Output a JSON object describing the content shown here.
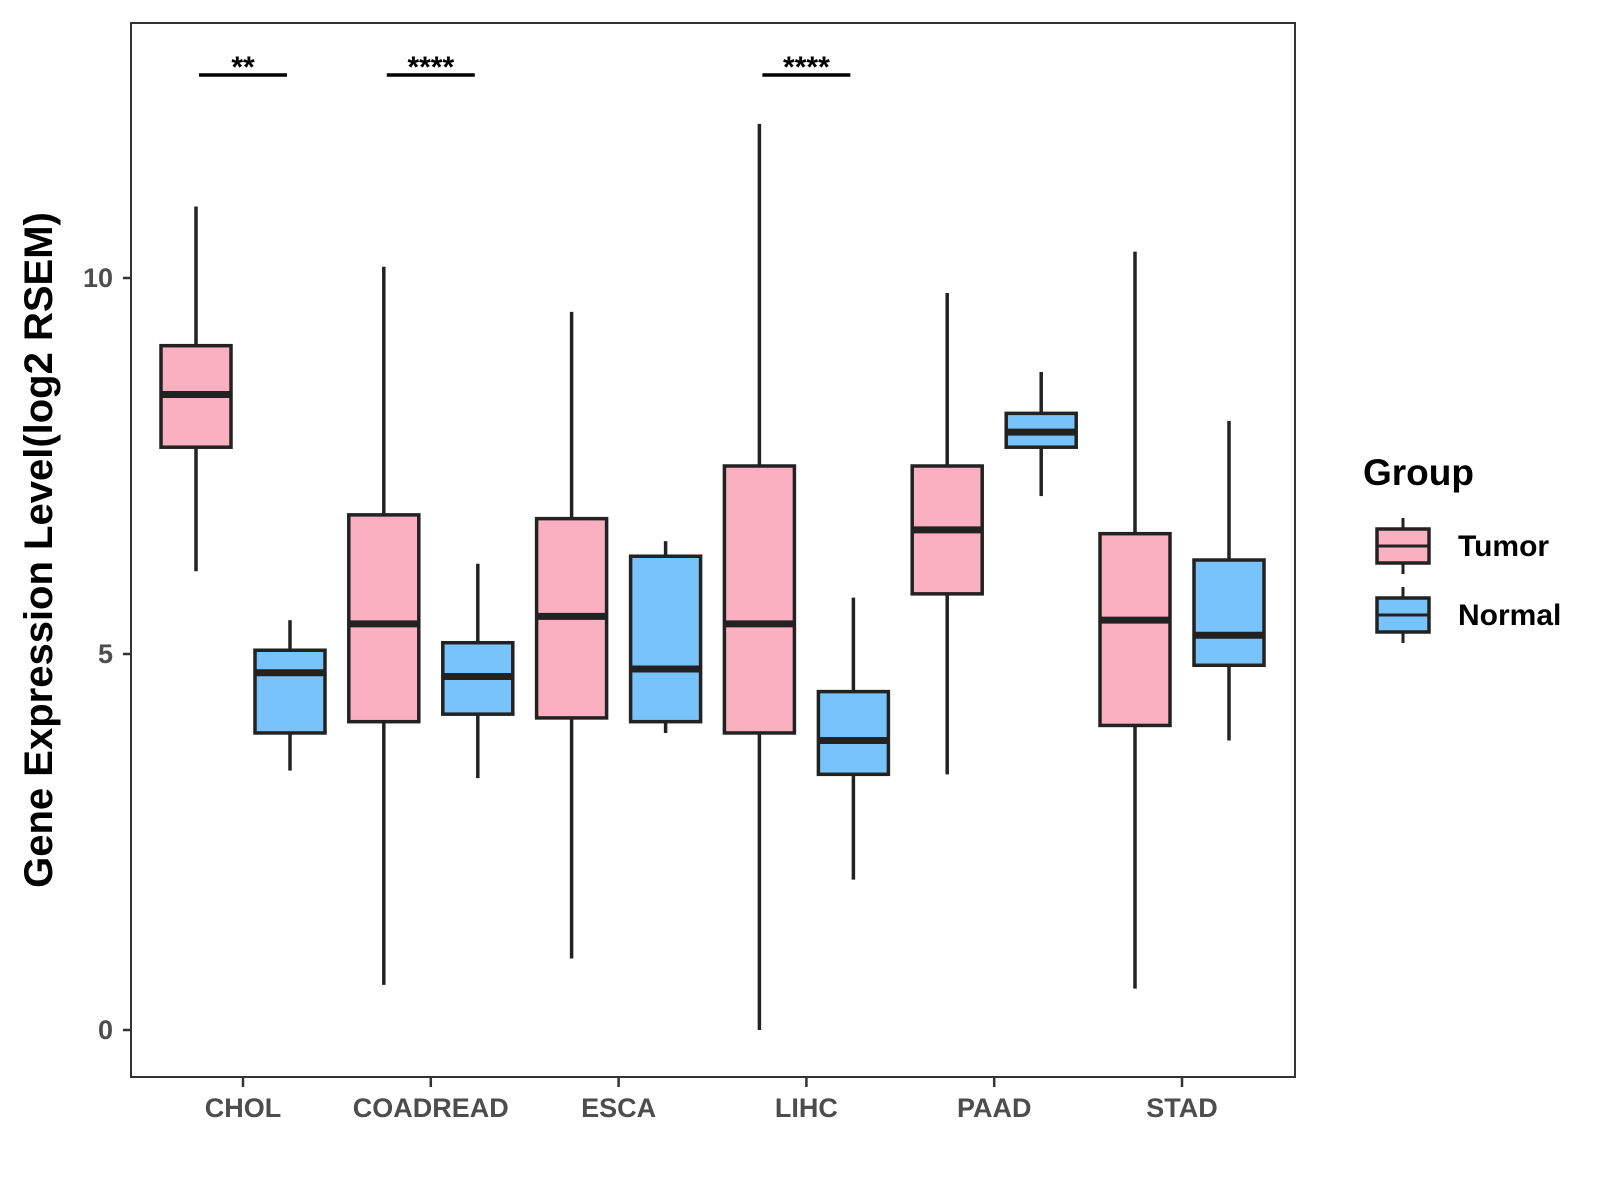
{
  "chart_data": {
    "type": "boxplot",
    "title": "",
    "xlabel": "",
    "ylabel": "Gene Expression Level(log2 RSEM)",
    "ylim": [
      -0.6,
      13.4
    ],
    "yticks": [
      0,
      5,
      10
    ],
    "categories": [
      "CHOL",
      "COADREAD",
      "ESCA",
      "LIHC",
      "PAAD",
      "STAD"
    ],
    "legend": {
      "title": "Group",
      "position": "right"
    },
    "series": [
      {
        "name": "Tumor",
        "color": "#FBB0C2",
        "boxes": [
          {
            "min": 6.1,
            "q1": 7.75,
            "median": 8.45,
            "q3": 9.1,
            "max": 10.95
          },
          {
            "min": 0.6,
            "q1": 4.1,
            "median": 5.4,
            "q3": 6.85,
            "max": 10.15
          },
          {
            "min": 0.95,
            "q1": 4.15,
            "median": 5.5,
            "q3": 6.8,
            "max": 9.55
          },
          {
            "min": 0.0,
            "q1": 3.95,
            "median": 5.4,
            "q3": 7.5,
            "max": 12.05
          },
          {
            "min": 3.4,
            "q1": 5.8,
            "median": 6.65,
            "q3": 7.5,
            "max": 9.8
          },
          {
            "min": 0.55,
            "q1": 4.05,
            "median": 5.45,
            "q3": 6.6,
            "max": 10.35
          }
        ]
      },
      {
        "name": "Normal",
        "color": "#78C3F9",
        "boxes": [
          {
            "min": 3.45,
            "q1": 3.95,
            "median": 4.75,
            "q3": 5.05,
            "max": 5.45
          },
          {
            "min": 3.35,
            "q1": 4.2,
            "median": 4.7,
            "q3": 5.15,
            "max": 6.2
          },
          {
            "min": 3.95,
            "q1": 4.1,
            "median": 4.8,
            "q3": 6.3,
            "max": 6.5
          },
          {
            "min": 2.0,
            "q1": 3.4,
            "median": 3.85,
            "q3": 4.5,
            "max": 5.75
          },
          {
            "min": 7.1,
            "q1": 7.75,
            "median": 7.95,
            "q3": 8.2,
            "max": 8.75
          },
          {
            "min": 3.85,
            "q1": 4.85,
            "median": 5.25,
            "q3": 6.25,
            "max": 8.1
          }
        ]
      }
    ],
    "annotations": [
      {
        "category": "CHOL",
        "label": "**",
        "y": 12.7
      },
      {
        "category": "COADREAD",
        "label": "****",
        "y": 12.7
      },
      {
        "category": "LIHC",
        "label": "****",
        "y": 12.7
      }
    ]
  }
}
